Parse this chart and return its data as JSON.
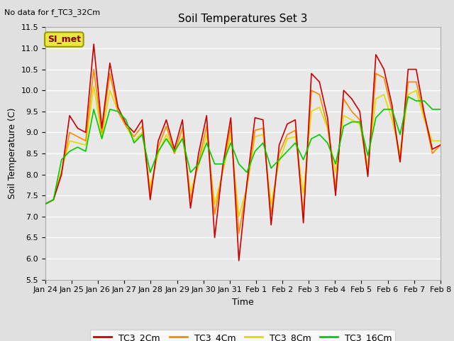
{
  "title": "Soil Temperatures Set 3",
  "subtitle": "No data for f_TC3_32Cm",
  "xlabel": "Time",
  "ylabel": "Soil Temperature (C)",
  "ylim": [
    5.5,
    11.5
  ],
  "fig_bg_color": "#e0e0e0",
  "plot_bg_color": "#e8e8e8",
  "grid_color": "#ffffff",
  "legend_label": "SI_met",
  "series_colors": {
    "TC3_2Cm": "#cc0000",
    "TC3_4Cm": "#ff8800",
    "TC3_8Cm": "#dddd00",
    "TC3_16Cm": "#00cc00"
  },
  "xtick_labels": [
    "Jan 24",
    "Jan 25",
    "Jan 26",
    "Jan 27",
    "Jan 28",
    "Jan 29",
    "Jan 30",
    "Jan 31",
    "Feb 1",
    "Feb 2",
    "Feb 3",
    "Feb 4",
    "Feb 5",
    "Feb 6",
    "Feb 7",
    "Feb 8"
  ],
  "TC3_2Cm": [
    7.3,
    7.4,
    8.0,
    9.4,
    9.1,
    9.0,
    11.1,
    9.1,
    10.65,
    9.6,
    9.2,
    9.0,
    9.3,
    7.4,
    8.8,
    9.3,
    8.6,
    9.3,
    7.2,
    8.5,
    9.4,
    6.5,
    8.2,
    9.35,
    5.95,
    7.8,
    9.35,
    9.3,
    6.8,
    8.7,
    9.2,
    9.3,
    6.85,
    10.4,
    10.2,
    9.35,
    7.5,
    10.0,
    9.8,
    9.5,
    7.95,
    10.85,
    10.5,
    9.65,
    8.3,
    10.5,
    10.5,
    9.45,
    8.6,
    8.7
  ],
  "TC3_4Cm": [
    7.3,
    7.4,
    8.05,
    9.0,
    8.9,
    8.8,
    10.5,
    9.0,
    10.4,
    9.5,
    9.15,
    8.9,
    9.15,
    7.55,
    8.65,
    9.15,
    8.5,
    9.1,
    7.4,
    8.3,
    9.15,
    7.05,
    8.1,
    9.15,
    6.6,
    7.7,
    9.05,
    9.1,
    7.05,
    8.5,
    8.95,
    9.05,
    7.05,
    10.0,
    9.9,
    9.15,
    7.7,
    9.8,
    9.5,
    9.3,
    8.0,
    10.4,
    10.3,
    9.5,
    8.3,
    10.2,
    10.2,
    9.4,
    8.5,
    8.7
  ],
  "TC3_8Cm": [
    7.3,
    7.4,
    8.1,
    8.8,
    8.75,
    8.7,
    10.1,
    8.9,
    10.0,
    9.5,
    9.15,
    8.8,
    9.0,
    7.7,
    8.5,
    8.95,
    8.5,
    8.9,
    7.6,
    8.2,
    8.95,
    7.3,
    8.05,
    8.95,
    7.0,
    7.7,
    8.9,
    8.95,
    7.3,
    8.3,
    8.85,
    8.9,
    7.55,
    9.5,
    9.6,
    9.1,
    8.05,
    9.4,
    9.3,
    9.2,
    8.2,
    9.8,
    9.9,
    9.3,
    8.5,
    9.9,
    10.0,
    9.3,
    8.8,
    8.8
  ],
  "TC3_16Cm": [
    7.3,
    7.4,
    8.35,
    8.55,
    8.65,
    8.55,
    9.55,
    8.85,
    9.55,
    9.5,
    9.3,
    8.75,
    8.95,
    8.05,
    8.55,
    8.85,
    8.55,
    8.85,
    8.05,
    8.25,
    8.75,
    8.25,
    8.25,
    8.75,
    8.25,
    8.05,
    8.55,
    8.75,
    8.15,
    8.35,
    8.55,
    8.75,
    8.35,
    8.85,
    8.95,
    8.75,
    8.25,
    9.15,
    9.25,
    9.25,
    8.45,
    9.35,
    9.55,
    9.55,
    8.95,
    9.85,
    9.75,
    9.75,
    9.55,
    9.55
  ]
}
